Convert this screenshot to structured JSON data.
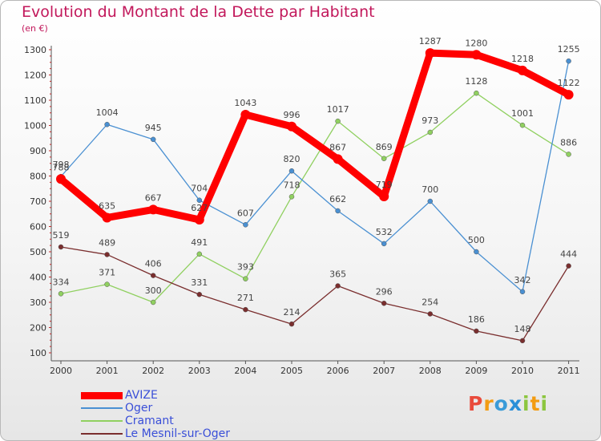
{
  "header": {
    "title": "Evolution du Montant de la Dette par Habitant",
    "subtitle": "(en €)"
  },
  "logo": {
    "text": "Proxiti",
    "letters": [
      {
        "ch": "P",
        "color": "#e94b3c"
      },
      {
        "ch": "r",
        "color": "#f39c12"
      },
      {
        "ch": "o",
        "color": "#3a9bd8"
      },
      {
        "ch": "x",
        "color": "#2a8fd8"
      },
      {
        "ch": "i",
        "color": "#8cc63f"
      },
      {
        "ch": "t",
        "color": "#f39c12"
      },
      {
        "ch": "i",
        "color": "#8cc63f"
      }
    ]
  },
  "chart_data": {
    "type": "line",
    "title": "Evolution du Montant de la Dette par Habitant",
    "subtitle": "(en €)",
    "x": [
      "2000",
      "2001",
      "2002",
      "2003",
      "2004",
      "2005",
      "2006",
      "2007",
      "2008",
      "2009",
      "2010",
      "2011"
    ],
    "yticks": [
      100,
      200,
      300,
      400,
      500,
      600,
      700,
      800,
      900,
      1000,
      1100,
      1200,
      1300
    ],
    "ylim": [
      100,
      1300
    ],
    "grid": false,
    "legend_position": "bottom-left",
    "series": [
      {
        "name": "AVIZE",
        "color": "#ff0000",
        "values": [
          788,
          635,
          667,
          627,
          1043,
          996,
          867,
          719,
          1287,
          1280,
          1218,
          1122
        ]
      },
      {
        "name": "Oger",
        "color": "#4a90d2",
        "values": [
          798,
          1004,
          945,
          704,
          607,
          820,
          662,
          532,
          700,
          500,
          342,
          1255
        ]
      },
      {
        "name": "Cramant",
        "color": "#90d060",
        "values": [
          334,
          371,
          300,
          491,
          393,
          718,
          1017,
          869,
          973,
          1128,
          1001,
          886
        ]
      },
      {
        "name": "Le Mesnil-sur-Oger",
        "color": "#7a2e2e",
        "values": [
          519,
          489,
          406,
          331,
          271,
          214,
          365,
          296,
          254,
          186,
          148,
          444
        ]
      }
    ]
  }
}
